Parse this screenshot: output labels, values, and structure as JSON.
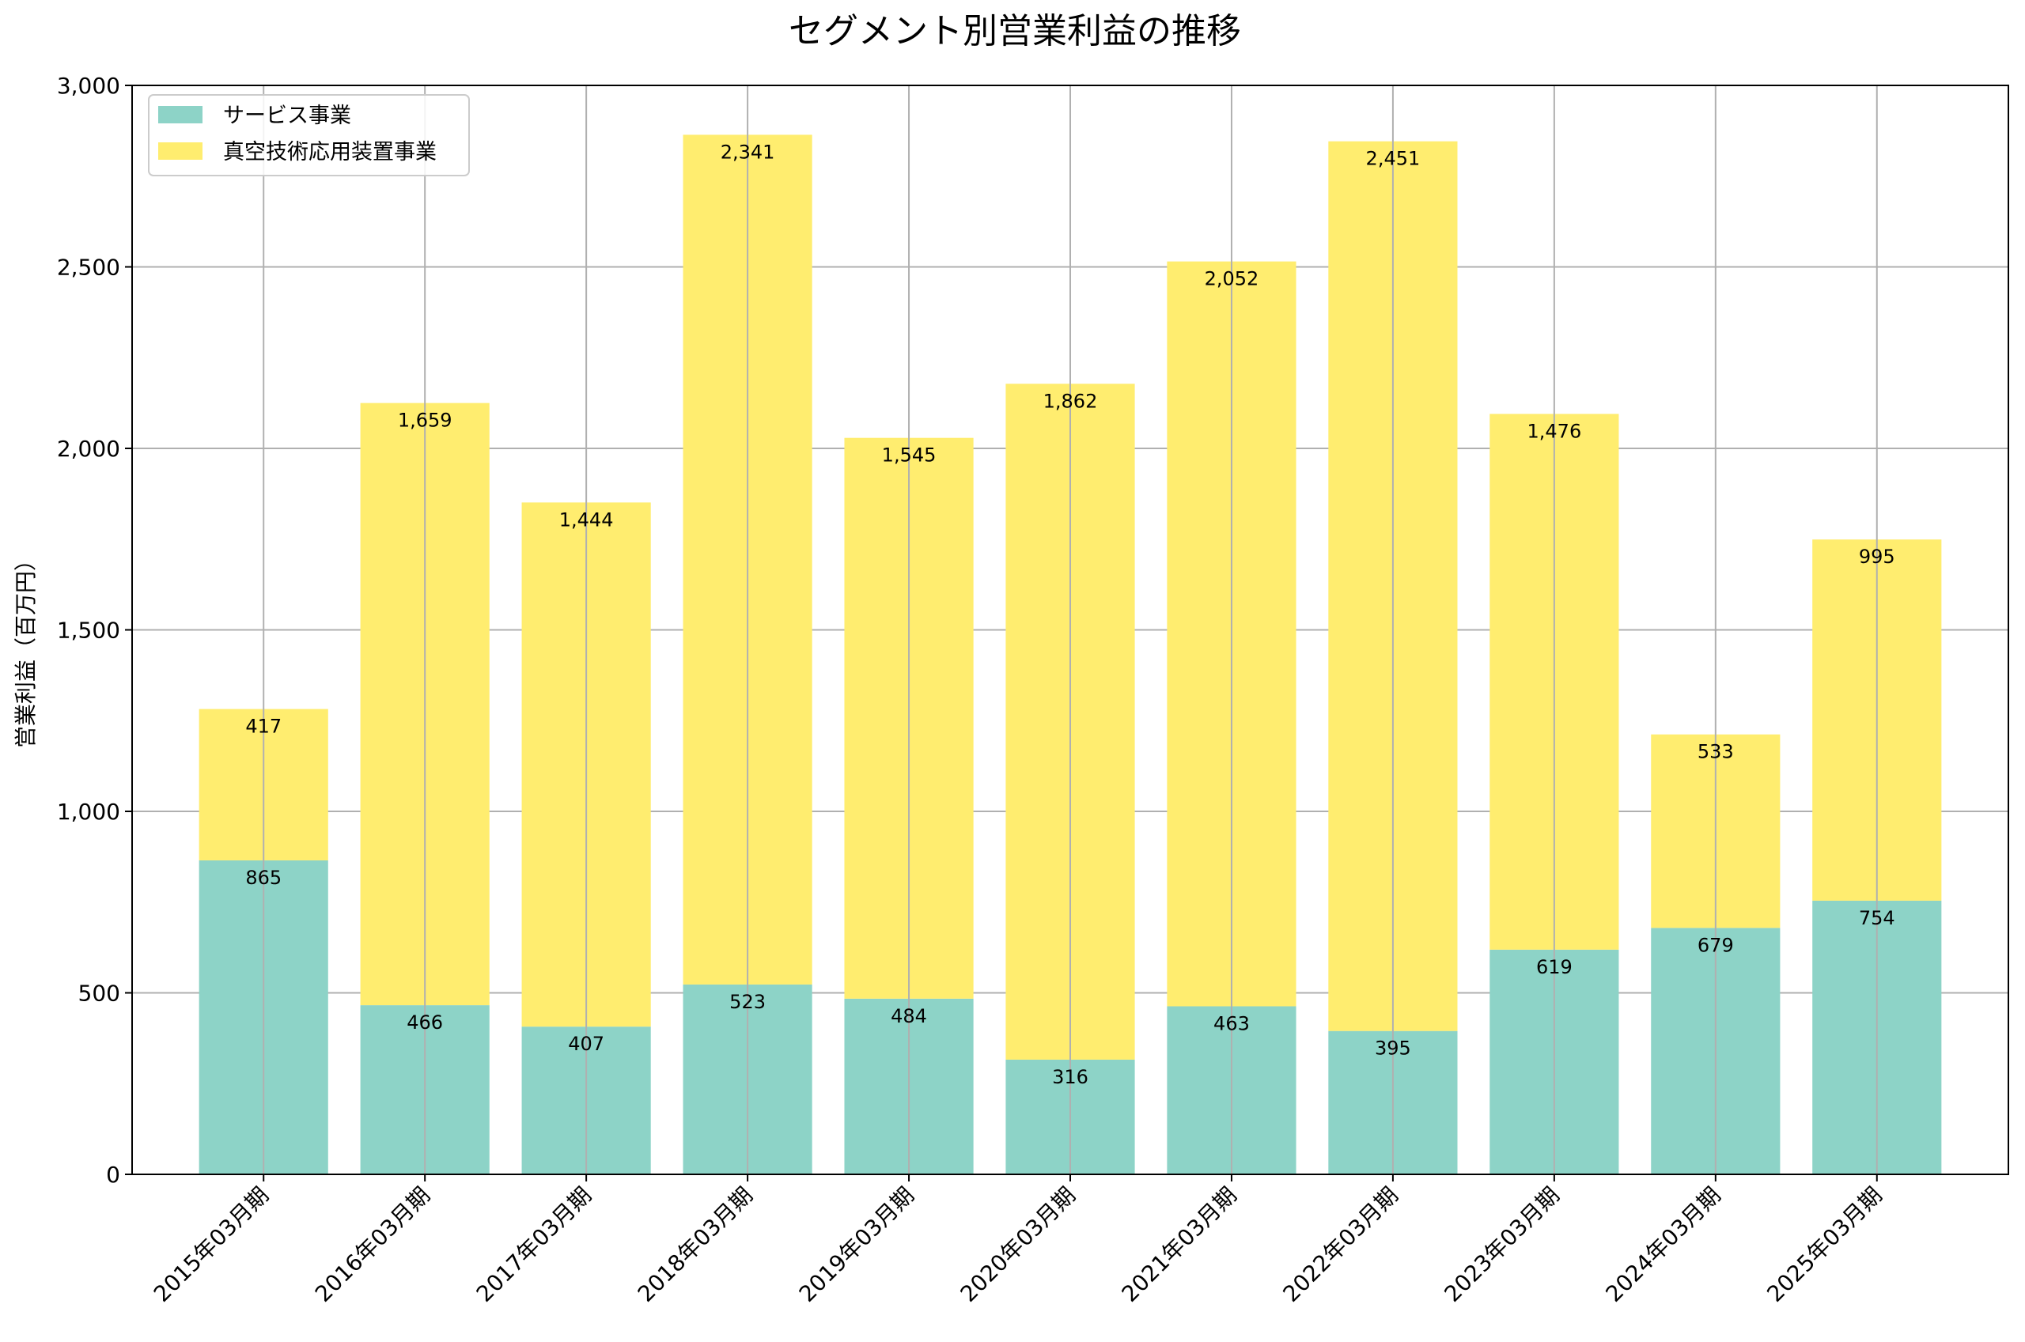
{
  "chart_data": {
    "type": "bar",
    "stacked": true,
    "title": "セグメント別営業利益の推移",
    "xlabel": "",
    "ylabel": "営業利益（百万円）",
    "ylim": [
      0,
      3000
    ],
    "yticks": [
      0,
      500,
      1000,
      1500,
      2000,
      2500,
      3000
    ],
    "ytick_labels": [
      "0",
      "500",
      "1,000",
      "1,500",
      "2,000",
      "2,500",
      "3,000"
    ],
    "grid": true,
    "legend_position": "top-left",
    "categories": [
      "2015年03月期",
      "2016年03月期",
      "2017年03月期",
      "2018年03月期",
      "2019年03月期",
      "2020年03月期",
      "2021年03月期",
      "2022年03月期",
      "2023年03月期",
      "2024年03月期",
      "2025年03月期"
    ],
    "series": [
      {
        "name": "サービス事業",
        "color": "#8dd3c7",
        "values": [
          865,
          466,
          407,
          523,
          484,
          316,
          463,
          395,
          619,
          679,
          754
        ],
        "labels": [
          "865",
          "466",
          "407",
          "523",
          "484",
          "316",
          "463",
          "395",
          "619",
          "679",
          "754"
        ]
      },
      {
        "name": "真空技術応用装置事業",
        "color": "#ffed6f",
        "values": [
          417,
          1659,
          1444,
          2341,
          1545,
          1862,
          2052,
          2451,
          1476,
          533,
          995
        ],
        "labels": [
          "417",
          "1,659",
          "1,444",
          "2,341",
          "1,545",
          "1,862",
          "2,052",
          "2,451",
          "1,476",
          "533",
          "995"
        ]
      }
    ]
  }
}
